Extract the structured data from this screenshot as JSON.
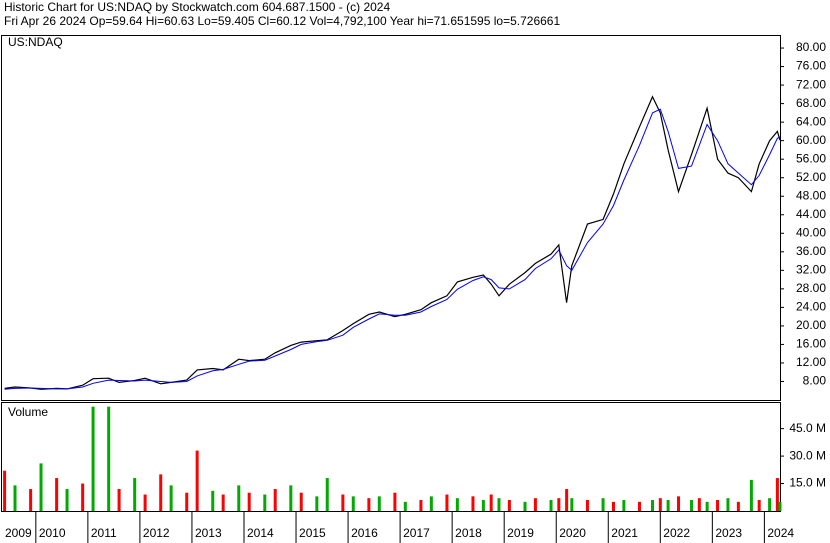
{
  "header": {
    "line1": "Historic Chart for US:NDAQ by Stockwatch.com 604.687.1500 - (c) 2024",
    "line2": "Fri Apr 26 2024   Op=59.64   Hi=60.63   Lo=59.405   Cl=60.12   Vol=4,792,100   Year hi=71.651595   lo=5.726661"
  },
  "chart_data": [
    {
      "type": "line",
      "label": "US:NDAQ",
      "x": [
        2009.4,
        2009.6,
        2009.9,
        2010.1,
        2010.4,
        2010.6,
        2010.9,
        2011.1,
        2011.4,
        2011.6,
        2011.9,
        2012.1,
        2012.4,
        2012.6,
        2012.9,
        2013.1,
        2013.4,
        2013.6,
        2013.9,
        2014.1,
        2014.4,
        2014.6,
        2014.9,
        2015.1,
        2015.4,
        2015.6,
        2015.9,
        2016.1,
        2016.4,
        2016.6,
        2016.9,
        2017.1,
        2017.4,
        2017.6,
        2017.9,
        2018.1,
        2018.4,
        2018.6,
        2018.75,
        2018.9,
        2019.1,
        2019.4,
        2019.6,
        2019.9,
        2020.05,
        2020.2,
        2020.3,
        2020.6,
        2020.9,
        2021.1,
        2021.3,
        2021.6,
        2021.85,
        2022.0,
        2022.15,
        2022.35,
        2022.6,
        2022.75,
        2022.9,
        2023.1,
        2023.3,
        2023.5,
        2023.75,
        2023.9,
        2024.1,
        2024.25,
        2024.3
      ],
      "series": [
        {
          "color": "#000000",
          "values": [
            6.5,
            6.8,
            6.6,
            6.3,
            6.5,
            6.4,
            7.2,
            8.6,
            8.7,
            7.8,
            8.2,
            8.7,
            7.5,
            7.8,
            8.3,
            10.5,
            10.8,
            10.5,
            12.8,
            12.5,
            12.8,
            14.2,
            15.8,
            16.5,
            16.8,
            17.0,
            19.0,
            20.5,
            22.5,
            23.0,
            22.0,
            22.5,
            23.5,
            25.0,
            26.5,
            29.5,
            30.5,
            31.0,
            29.0,
            26.5,
            29.0,
            31.5,
            33.5,
            35.5,
            37.5,
            25.0,
            33.0,
            42.0,
            43.0,
            48.5,
            55.0,
            63.0,
            69.5,
            66.0,
            58.0,
            49.0,
            57.0,
            62.0,
            67.0,
            56.0,
            53.0,
            52.0,
            49.0,
            55.0,
            60.0,
            62.0,
            60.1
          ]
        },
        {
          "color": "#0000ff",
          "values": [
            6.3,
            6.5,
            6.6,
            6.5,
            6.4,
            6.4,
            6.8,
            7.6,
            8.3,
            8.2,
            8.1,
            8.3,
            8.0,
            7.8,
            8.0,
            9.2,
            10.3,
            10.6,
            11.7,
            12.4,
            12.6,
            13.5,
            14.9,
            16.0,
            16.6,
            16.9,
            18.0,
            19.7,
            21.5,
            22.6,
            22.3,
            22.3,
            23.0,
            24.2,
            25.7,
            27.9,
            29.8,
            30.6,
            30.0,
            28.2,
            28.0,
            30.0,
            32.4,
            34.5,
            36.4,
            33.0,
            32.0,
            38.0,
            42.0,
            46.0,
            51.5,
            59.0,
            66.0,
            66.8,
            62.0,
            54.0,
            54.5,
            59.0,
            63.5,
            60.0,
            55.0,
            53.0,
            50.5,
            52.5,
            57.0,
            60.5,
            60.8
          ]
        }
      ],
      "xlim": [
        2009.35,
        2024.3
      ],
      "ylim": [
        4,
        82.6
      ],
      "yticks": [
        {
          "value": 8,
          "label": "8.00"
        },
        {
          "value": 12,
          "label": "12.00"
        },
        {
          "value": 16,
          "label": "16.00"
        },
        {
          "value": 20,
          "label": "20.00"
        },
        {
          "value": 24,
          "label": "24.00"
        },
        {
          "value": 28,
          "label": "28.00"
        },
        {
          "value": 32,
          "label": "32.00"
        },
        {
          "value": 36,
          "label": "36.00"
        },
        {
          "value": 40,
          "label": "40.00"
        },
        {
          "value": 44,
          "label": "44.00"
        },
        {
          "value": 48,
          "label": "48.00"
        },
        {
          "value": 52,
          "label": "52.00"
        },
        {
          "value": 56,
          "label": "56.00"
        },
        {
          "value": 60,
          "label": "60.00"
        },
        {
          "value": 64,
          "label": "64.00"
        },
        {
          "value": 68,
          "label": "68.00"
        },
        {
          "value": 72,
          "label": "72.00"
        },
        {
          "value": 76,
          "label": "76.00"
        },
        {
          "value": 80,
          "label": "80.00"
        }
      ]
    },
    {
      "type": "bar",
      "label": "Volume",
      "x": [
        2009.4,
        2009.6,
        2009.9,
        2010.1,
        2010.4,
        2010.6,
        2010.9,
        2011.1,
        2011.4,
        2011.6,
        2011.9,
        2012.1,
        2012.4,
        2012.6,
        2012.9,
        2013.1,
        2013.4,
        2013.6,
        2013.9,
        2014.1,
        2014.4,
        2014.6,
        2014.9,
        2015.1,
        2015.4,
        2015.6,
        2015.9,
        2016.1,
        2016.4,
        2016.6,
        2016.9,
        2017.1,
        2017.4,
        2017.6,
        2017.9,
        2018.1,
        2018.4,
        2018.6,
        2018.75,
        2018.9,
        2019.1,
        2019.4,
        2019.6,
        2019.9,
        2020.05,
        2020.2,
        2020.3,
        2020.6,
        2020.9,
        2021.1,
        2021.3,
        2021.6,
        2021.85,
        2022.0,
        2022.15,
        2022.35,
        2022.6,
        2022.75,
        2022.9,
        2023.1,
        2023.3,
        2023.5,
        2023.75,
        2023.9,
        2024.1,
        2024.25,
        2024.3
      ],
      "values": [
        22,
        14,
        12,
        26,
        18,
        12,
        15,
        57,
        57,
        12,
        18,
        9,
        20,
        14,
        10,
        33,
        11,
        9,
        14,
        10,
        9,
        12,
        14,
        10,
        8,
        18,
        9,
        8,
        7,
        8,
        10,
        5,
        6,
        8,
        9,
        7,
        8,
        6,
        9,
        7,
        6,
        5,
        7,
        6,
        7,
        12,
        7,
        6,
        7,
        5,
        6,
        5,
        6,
        7,
        6,
        8,
        6,
        7,
        5,
        6,
        7,
        5,
        17,
        6,
        7,
        18,
        5
      ],
      "colors": [
        "#ff0000",
        "#00aa00",
        "#ff0000",
        "#00aa00",
        "#ff0000",
        "#00aa00",
        "#ff0000",
        "#00aa00",
        "#00aa00",
        "#ff0000",
        "#00aa00",
        "#ff0000",
        "#ff0000",
        "#00aa00",
        "#ff0000",
        "#ff0000",
        "#00aa00",
        "#ff0000",
        "#00aa00",
        "#ff0000",
        "#00aa00",
        "#ff0000",
        "#00aa00",
        "#ff0000",
        "#00aa00",
        "#00aa00",
        "#ff0000",
        "#00aa00",
        "#ff0000",
        "#00aa00",
        "#ff0000",
        "#00aa00",
        "#ff0000",
        "#00aa00",
        "#ff0000",
        "#00aa00",
        "#ff0000",
        "#00aa00",
        "#ff0000",
        "#00aa00",
        "#ff0000",
        "#00aa00",
        "#ff0000",
        "#00aa00",
        "#ff0000",
        "#ff0000",
        "#00aa00",
        "#ff0000",
        "#00aa00",
        "#ff0000",
        "#00aa00",
        "#ff0000",
        "#00aa00",
        "#ff0000",
        "#00aa00",
        "#ff0000",
        "#00aa00",
        "#ff0000",
        "#00aa00",
        "#ff0000",
        "#00aa00",
        "#ff0000",
        "#00aa00",
        "#ff0000",
        "#00aa00",
        "#ff0000",
        "#00aa00"
      ],
      "xlim": [
        2009.35,
        2024.3
      ],
      "ylim": [
        0,
        59
      ],
      "yticks": [
        {
          "value": 15,
          "label": "15.0 M"
        },
        {
          "value": 30,
          "label": "30.0 M"
        },
        {
          "value": 45,
          "label": "45.0 M"
        }
      ],
      "xticks": [
        2009,
        2010,
        2011,
        2012,
        2013,
        2014,
        2015,
        2016,
        2017,
        2018,
        2019,
        2020,
        2021,
        2022,
        2023,
        2024
      ]
    }
  ]
}
